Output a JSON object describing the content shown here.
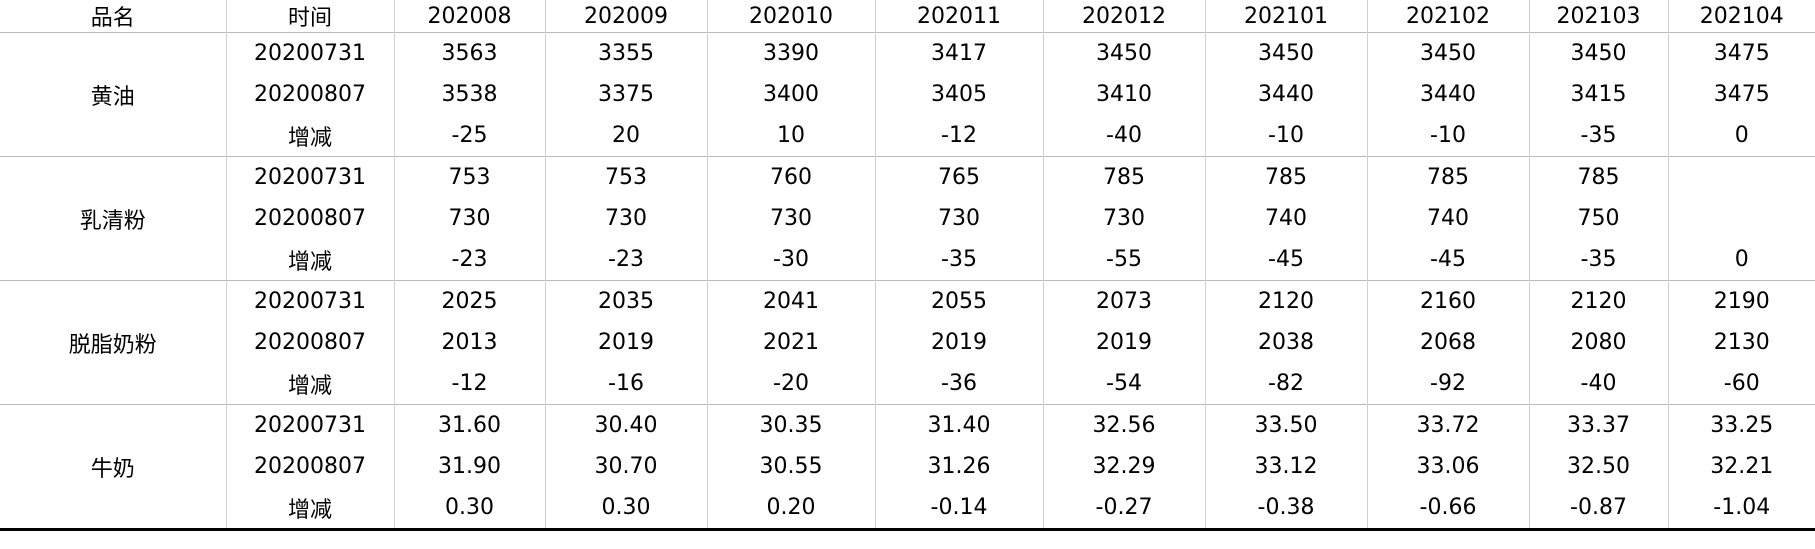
{
  "table": {
    "header": [
      "品名",
      "时间",
      "202008",
      "202009",
      "202010",
      "202011",
      "202012",
      "202101",
      "202102",
      "202103",
      "202104"
    ],
    "groups": [
      {
        "name": "黄油",
        "rows": [
          {
            "time": "20200731",
            "values": [
              "3563",
              "3355",
              "3390",
              "3417",
              "3450",
              "3450",
              "3450",
              "3450",
              "3475"
            ]
          },
          {
            "time": "20200807",
            "values": [
              "3538",
              "3375",
              "3400",
              "3405",
              "3410",
              "3440",
              "3440",
              "3415",
              "3475"
            ]
          },
          {
            "time": "增减",
            "values": [
              "-25",
              "20",
              "10",
              "-12",
              "-40",
              "-10",
              "-10",
              "-35",
              "0"
            ]
          }
        ]
      },
      {
        "name": "乳清粉",
        "rows": [
          {
            "time": "20200731",
            "values": [
              "753",
              "753",
              "760",
              "765",
              "785",
              "785",
              "785",
              "785",
              null
            ]
          },
          {
            "time": "20200807",
            "values": [
              "730",
              "730",
              "730",
              "730",
              "730",
              "740",
              "740",
              "750",
              null
            ]
          },
          {
            "time": "增减",
            "values": [
              "-23",
              "-23",
              "-30",
              "-35",
              "-55",
              "-45",
              "-45",
              "-35",
              "0"
            ]
          }
        ]
      },
      {
        "name": "脱脂奶粉",
        "rows": [
          {
            "time": "20200731",
            "values": [
              "2025",
              "2035",
              "2041",
              "2055",
              "2073",
              "2120",
              "2160",
              "2120",
              "2190"
            ]
          },
          {
            "time": "20200807",
            "values": [
              "2013",
              "2019",
              "2021",
              "2019",
              "2019",
              "2038",
              "2068",
              "2080",
              "2130"
            ]
          },
          {
            "time": "增减",
            "values": [
              "-12",
              "-16",
              "-20",
              "-36",
              "-54",
              "-82",
              "-92",
              "-40",
              "-60"
            ]
          }
        ]
      },
      {
        "name": "牛奶",
        "rows": [
          {
            "time": "20200731",
            "values": [
              "31.60",
              "30.40",
              "30.35",
              "31.40",
              "32.56",
              "33.50",
              "33.72",
              "33.37",
              "33.25"
            ]
          },
          {
            "time": "20200807",
            "values": [
              "31.90",
              "30.70",
              "30.55",
              "31.26",
              "32.29",
              "33.12",
              "33.06",
              "32.50",
              "32.21"
            ]
          },
          {
            "time": "增减",
            "values": [
              "0.30",
              "0.30",
              "0.20",
              "-0.14",
              "-0.27",
              "-0.38",
              "-0.66",
              "-0.87",
              "-1.04"
            ]
          }
        ]
      }
    ]
  }
}
